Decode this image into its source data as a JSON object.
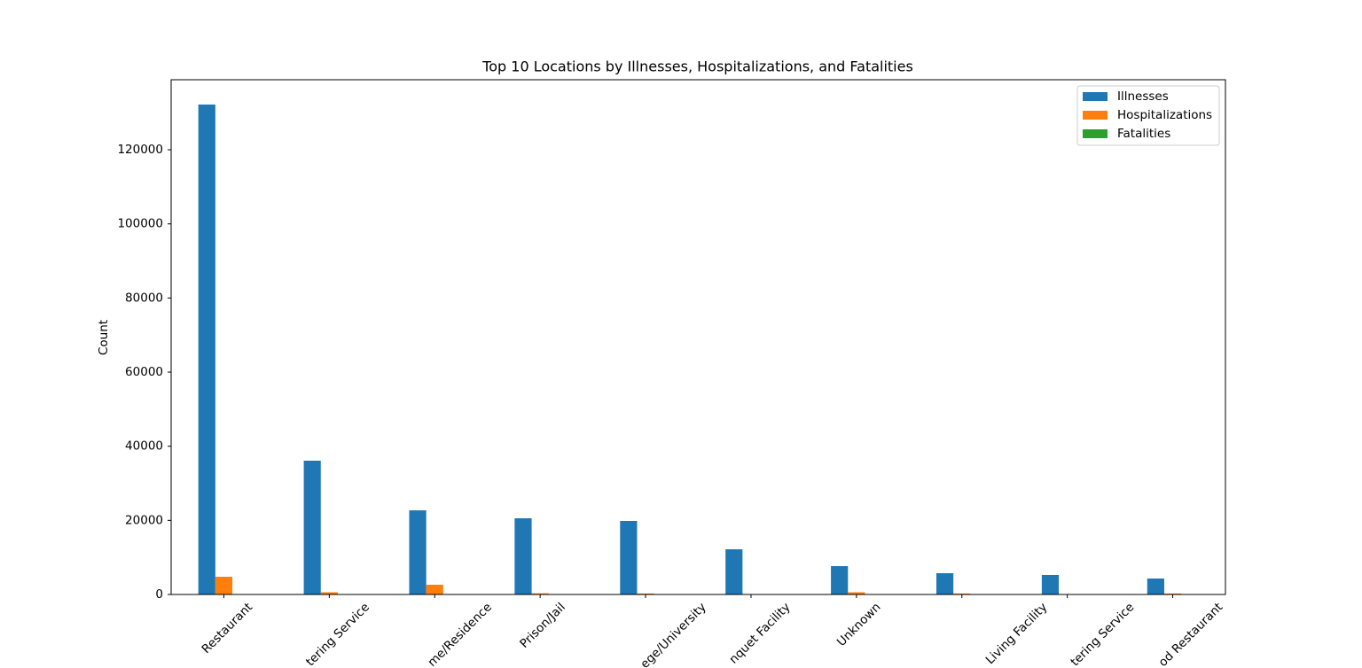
{
  "chart_data": {
    "type": "bar",
    "title": "Top 10 Locations by Illnesses, Hospitalizations, and Fatalities",
    "y_label": "Count",
    "categories": [
      "Restaurant",
      "tering Service",
      "me/Residence",
      "Prison/Jail",
      "ege/University",
      "nquet Facility",
      "Unknown",
      "Living Facility",
      "tering Service",
      "od Restaurant"
    ],
    "series": [
      {
        "name": "Illnesses",
        "color": "#1f77b4",
        "values": [
          132200,
          36100,
          22700,
          20560,
          19840,
          12190,
          7650,
          5740,
          5260,
          4300
        ]
      },
      {
        "name": "Hospitalizations",
        "color": "#ff7f0e",
        "values": [
          4780,
          600,
          2630,
          300,
          250,
          100,
          600,
          250,
          100,
          250
        ]
      },
      {
        "name": "Fatalities",
        "color": "#2ca02c",
        "values": [
          20,
          5,
          10,
          2,
          3,
          0,
          5,
          10,
          1,
          2
        ]
      }
    ],
    "ylim": [
      0,
      138900
    ],
    "yticks": [
      0,
      20000,
      40000,
      60000,
      80000,
      100000,
      120000
    ],
    "legend": "upper right"
  }
}
